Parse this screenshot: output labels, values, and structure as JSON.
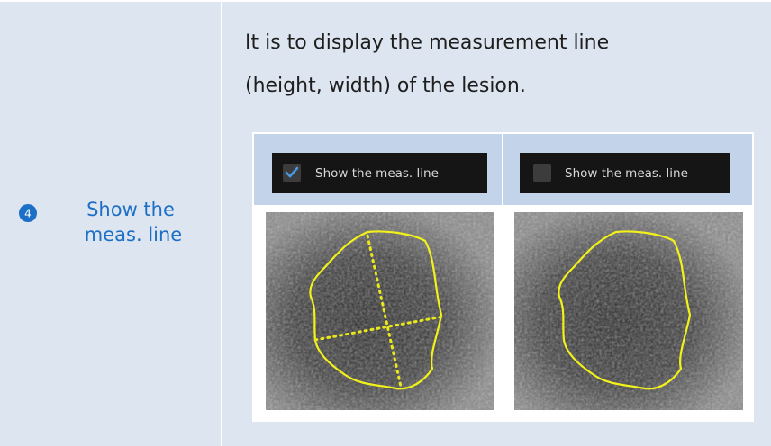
{
  "feature": {
    "number": "4",
    "label_lines": [
      "Show the",
      "meas. line"
    ]
  },
  "description_lines": [
    "It is to display the measurement line",
    "(height, width) of the lesion."
  ],
  "examples": [
    {
      "checkbox_label": "Show the meas. line",
      "checked": true
    },
    {
      "checkbox_label": "Show the meas. line",
      "checked": false
    }
  ]
}
